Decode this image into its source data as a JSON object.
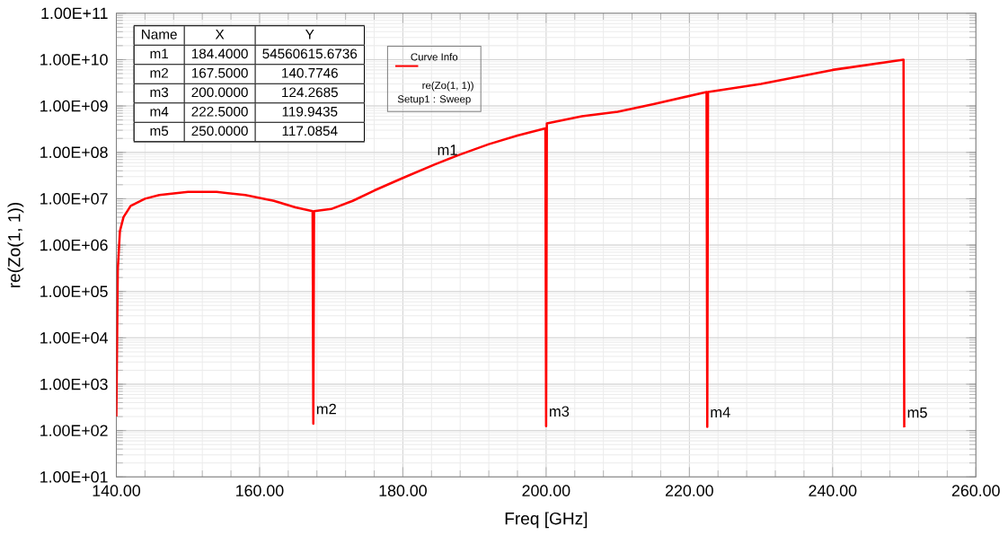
{
  "chart_data": {
    "type": "line",
    "xlabel": "Freq [GHz]",
    "ylabel": "re(Zo(1, 1))",
    "legend_title": "Curve Info",
    "legend": "top left",
    "grid": true,
    "log": "y",
    "marker": "none",
    "line_style": "solid",
    "xlim": [
      140,
      260
    ],
    "xticks": [
      {
        "value": 140,
        "label": "140.00"
      },
      {
        "value": 160,
        "label": "160.00"
      },
      {
        "value": 180,
        "label": "180.00"
      },
      {
        "value": 200,
        "label": "200.00"
      },
      {
        "value": 220,
        "label": "220.00"
      },
      {
        "value": 240,
        "label": "240.00"
      },
      {
        "value": 260,
        "label": "260.00"
      }
    ],
    "ylim": [
      10,
      100000000000
    ],
    "yticks": [
      {
        "value": 10,
        "label": "1.00E+01"
      },
      {
        "value": 100,
        "label": "1.00E+02"
      },
      {
        "value": 1000,
        "label": "1.00E+03"
      },
      {
        "value": 10000,
        "label": "1.00E+04"
      },
      {
        "value": 100000,
        "label": "1.00E+05"
      },
      {
        "value": 1000000,
        "label": "1.00E+06"
      },
      {
        "value": 10000000,
        "label": "1.00E+07"
      },
      {
        "value": 100000000,
        "label": "1.00E+08"
      },
      {
        "value": 1000000000,
        "label": "1.00E+09"
      },
      {
        "value": 10000000000,
        "label": "1.00E+10"
      },
      {
        "value": 100000000000,
        "label": "1.00E+11"
      }
    ],
    "series": [
      {
        "name": "re(Zo(1, 1))",
        "color": "#ff0000",
        "x": [
          140,
          140.2,
          140.5,
          141,
          142,
          144,
          146,
          150,
          154,
          158,
          162,
          165,
          167.4,
          167.5,
          167.6,
          170,
          173,
          176,
          180,
          184.4,
          188,
          192,
          196,
          199.9,
          200,
          200.1,
          205,
          210,
          215,
          222.4,
          222.5,
          222.6,
          230,
          240,
          249.9,
          250
        ],
        "values": [
          200,
          300000,
          2000000,
          4000000,
          7000000,
          10000000,
          12000000,
          14000000,
          14000000,
          12000000,
          9000000,
          6500000,
          5400000,
          140.7746,
          5400000,
          6000000,
          9000000,
          15000000,
          28000000,
          54560615.6736,
          90000000,
          150000000,
          230000000,
          330000000,
          124.2685,
          420000000,
          600000000,
          750000000,
          1100000000,
          2000000000,
          119.9435,
          2000000000,
          3000000000,
          6000000000,
          10000000000,
          117.0854
        ]
      }
    ],
    "annotations": [
      "Name",
      "X",
      "Y",
      "m1",
      "184.4000",
      "54560615.6736",
      "m2",
      "167.5000",
      "140.7746",
      "m3",
      "200.0000",
      "124.2685",
      "m4",
      "222.5000",
      "119.9435",
      "m5",
      "250.0000",
      "117.0854",
      "Setup1 : Sweep",
      {
        "text": "m1",
        "x": 184.4,
        "y": 54560615.6736
      },
      {
        "text": "m2",
        "x": 167.5,
        "y": 140.7746
      },
      {
        "text": "m3",
        "x": 200,
        "y": 124.2685
      },
      {
        "text": "m4",
        "x": 222.5,
        "y": 119.9435
      },
      {
        "text": "m5",
        "x": 250,
        "y": 117.0854
      }
    ]
  }
}
